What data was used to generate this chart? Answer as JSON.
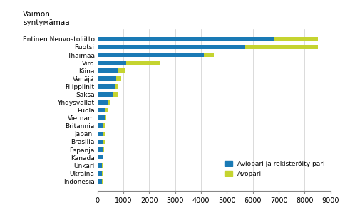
{
  "categories": [
    "Indonesia",
    "Ukraina",
    "Unkari",
    "Kanada",
    "Espanja",
    "Brasilia",
    "Japani",
    "Britannia",
    "Vietnam",
    "Puola",
    "Yhdysvallat",
    "Saksa",
    "Filippiinit",
    "Venäjä",
    "Kiina",
    "Viro",
    "Thaimaa",
    "Ruotsi",
    "Entinen Neuvostoliitto"
  ],
  "aviopari": [
    160,
    170,
    180,
    200,
    200,
    220,
    230,
    240,
    280,
    310,
    380,
    600,
    700,
    720,
    800,
    1100,
    4100,
    5700,
    6800
  ],
  "avopari": [
    30,
    20,
    40,
    30,
    50,
    50,
    40,
    60,
    70,
    80,
    100,
    200,
    80,
    200,
    250,
    1300,
    400,
    2800,
    1700
  ],
  "color_aviopari": "#1a7ab5",
  "color_avopari": "#c5d430",
  "xlim": [
    0,
    9000
  ],
  "xticks": [
    0,
    1000,
    2000,
    3000,
    4000,
    5000,
    6000,
    7000,
    8000,
    9000
  ],
  "legend_aviopari": "Aviopari ja rekisteröity pari",
  "legend_avopari": "Avopari",
  "title_text": "Vaimon\nsyntyмämaa",
  "grid_color": "#cccccc"
}
